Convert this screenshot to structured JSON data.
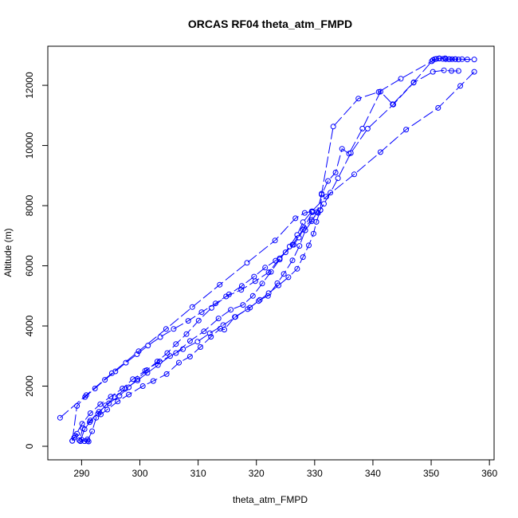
{
  "chart_data": {
    "type": "line",
    "title": "ORCAS RF04 theta_atm_FMPD",
    "xlabel": "theta_atm_FMPD",
    "ylabel": "Altitude (m)",
    "xlim": [
      284.2,
      360.8
    ],
    "ylim": [
      -450,
      13300
    ],
    "xticks": [
      290,
      300,
      310,
      320,
      330,
      340,
      350,
      360
    ],
    "yticks": [
      0,
      2000,
      4000,
      6000,
      8000,
      10000,
      12000
    ],
    "grid": false,
    "legend": "none",
    "color": "#0000ff",
    "marker": "open-circle",
    "line_style": "dashed",
    "series": [
      {
        "x": [
          291.0,
          291.8,
          292.5,
          293.3,
          294.4,
          296.2,
          298.1,
          300.5,
          302.3,
          304.6,
          306.7,
          308.6,
          310.4,
          312.2,
          313.8,
          314.5,
          316.3,
          318.9,
          320.6,
          322.0,
          323.6,
          324.7,
          326.2,
          327.4,
          328.4,
          329.5,
          330.4,
          331.2,
          332.3,
          333.6,
          334.7,
          335.9,
          338.2,
          341.3,
          343.4,
          347.0,
          350.3,
          351.4,
          352.4,
          353.2,
          354.1,
          355.3,
          356.2,
          357.4
        ],
        "y": [
          180,
          500,
          950,
          1060,
          1220,
          1490,
          1720,
          2000,
          2170,
          2400,
          2780,
          2980,
          3300,
          3640,
          3910,
          3880,
          4300,
          4610,
          4870,
          5000,
          5420,
          5730,
          6180,
          6660,
          7180,
          7480,
          7790,
          8370,
          8820,
          9100,
          9890,
          9730,
          10560,
          11790,
          11370,
          12100,
          12840,
          12900,
          12900,
          12870,
          12870,
          12870,
          12860,
          12860
        ]
      },
      {
        "x": [
          357.4,
          355.0,
          351.2,
          345.7,
          341.3,
          336.8,
          332.0,
          329.5,
          328.0,
          327.0,
          325.7,
          324.0,
          322.5,
          321.0,
          319.4,
          317.7,
          315.6,
          313.5,
          311.0,
          308.6,
          306.2,
          303.4,
          300.9,
          298.8,
          297.0,
          295.0,
          293.2,
          291.5,
          290.1,
          288.9
        ],
        "y": [
          12450,
          11980,
          11250,
          10530,
          9780,
          9040,
          8300,
          7810,
          7450,
          7030,
          6640,
          6210,
          5800,
          5410,
          5000,
          4700,
          4540,
          4250,
          3820,
          3500,
          3100,
          2820,
          2510,
          2230,
          1920,
          1650,
          1400,
          1100,
          750,
          350
        ]
      },
      {
        "x": [
          286.3,
          290.8,
          295.2,
          299.8,
          304.5,
          309.0,
          313.7,
          318.4,
          323.2,
          326.7,
          328.3,
          329.6
        ],
        "y": [
          950,
          1700,
          2430,
          3160,
          3900,
          4630,
          5370,
          6100,
          6840,
          7580,
          7760,
          7810
        ]
      },
      {
        "x": [
          329.6,
          328.0,
          326.2,
          324.0,
          322.1,
          319.8,
          317.4,
          314.8,
          312.3,
          310.1,
          308.0,
          306.2,
          304.7,
          303.0,
          301.2,
          299.6,
          298.1,
          296.5,
          294.7,
          293.0,
          291.5,
          290.2,
          289.6
        ],
        "y": [
          7780,
          7200,
          6700,
          6250,
          5780,
          5490,
          5200,
          4980,
          4600,
          4180,
          3730,
          3400,
          3100,
          2820,
          2530,
          2240,
          1960,
          1680,
          1430,
          1150,
          860,
          600,
          200
        ]
      },
      {
        "x": [
          289.8,
          290.5,
          291.4,
          292.8,
          294.1,
          295.7,
          297.5,
          299.6,
          301.3,
          303.1,
          305.2,
          307.4,
          309.9,
          312.0,
          314.3,
          316.4,
          318.5,
          320.4,
          322.1,
          323.8,
          325.5,
          327.0,
          328.0,
          329.0,
          329.8,
          330.3,
          331.0
        ],
        "y": [
          170,
          570,
          800,
          1080,
          1360,
          1630,
          1910,
          2190,
          2440,
          2700,
          3000,
          3230,
          3480,
          3760,
          4030,
          4300,
          4560,
          4830,
          5090,
          5350,
          5620,
          5900,
          6290,
          6680,
          7070,
          7460,
          7850
        ]
      },
      {
        "x": [
          331.0,
          331.2,
          333.2,
          337.5,
          341.0,
          344.8,
          350.1,
          350.6,
          350.9,
          351.4,
          352.0,
          352.5,
          353.0,
          353.6,
          354.2,
          354.7
        ],
        "y": [
          7850,
          8400,
          10630,
          11560,
          11780,
          12220,
          12800,
          12870,
          12880,
          12890,
          12880,
          12870,
          12870,
          12870,
          12870,
          12860
        ]
      },
      {
        "x": [
          354.7,
          353.5,
          352.2,
          350.3,
          347.0,
          343.5,
          339.1,
          336.2,
          334.0,
          332.7,
          331.6,
          330.6,
          329.5,
          328.2,
          327.3,
          326.4,
          325.0,
          323.3,
          321.5,
          319.6,
          317.5,
          315.3,
          313.0,
          310.6,
          308.3,
          305.8,
          303.5,
          301.4,
          299.5,
          297.6,
          295.8,
          294.0,
          292.3,
          290.6,
          289.2,
          288.4
        ],
        "y": [
          12480,
          12480,
          12500,
          12450,
          12090,
          11360,
          10560,
          9750,
          8910,
          8430,
          8060,
          7760,
          7530,
          7260,
          6940,
          6700,
          6450,
          6170,
          5940,
          5640,
          5330,
          5050,
          4750,
          4460,
          4170,
          3900,
          3630,
          3350,
          3060,
          2780,
          2490,
          2210,
          1920,
          1640,
          1340,
          180
        ]
      },
      {
        "x": [
          288.4,
          288.7,
          289.2,
          290.0,
          290.5,
          291.2,
          291.0
        ],
        "y": [
          180,
          280,
          420,
          220,
          170,
          160,
          230
        ]
      }
    ]
  }
}
